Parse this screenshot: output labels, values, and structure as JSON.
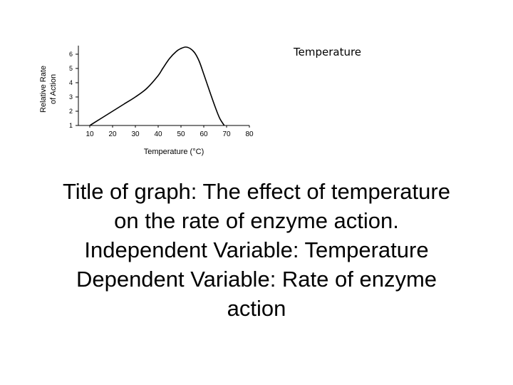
{
  "corner_label": "Temperature",
  "caption": {
    "lines": [
      "Title of graph: The effect of temperature",
      "on the rate of enzyme action.",
      "Independent Variable: Temperature",
      "Dependent Variable: Rate of enzyme",
      "action"
    ]
  },
  "chart_data": {
    "type": "line",
    "title": "",
    "xlabel": "Temperature (°C)",
    "ylabel_lines": [
      "Relative Rate",
      "of Action"
    ],
    "xlim": [
      5,
      80
    ],
    "ylim": [
      1,
      6.5
    ],
    "x_ticks": [
      10,
      20,
      30,
      40,
      50,
      60,
      70,
      80
    ],
    "y_ticks": [
      1,
      2,
      3,
      4,
      5,
      6
    ],
    "grid": false,
    "line_color": "#000000",
    "series": [
      {
        "x": [
          10,
          15,
          20,
          25,
          30,
          35,
          40,
          42,
          45,
          48,
          50,
          52,
          54,
          56,
          58,
          60,
          63,
          65,
          67,
          69
        ],
        "y": [
          1.0,
          1.5,
          2.0,
          2.5,
          3.0,
          3.6,
          4.5,
          5.0,
          5.7,
          6.2,
          6.4,
          6.5,
          6.4,
          6.1,
          5.5,
          4.6,
          3.2,
          2.3,
          1.5,
          1.0
        ]
      }
    ]
  }
}
